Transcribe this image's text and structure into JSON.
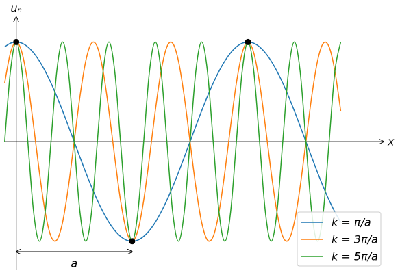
{
  "chart_data": {
    "type": "line",
    "xlabel": "x",
    "ylabel": "uₙ",
    "xlim": [
      -0.14,
      3.17
    ],
    "ylim": [
      -1.29,
      1.25
    ],
    "legend": "lower right",
    "x": [
      -0.1,
      -0.05,
      0,
      0.05,
      0.1,
      0.15,
      0.2,
      0.25,
      0.3,
      0.35,
      0.4,
      0.45,
      0.5,
      0.55,
      0.6,
      0.65,
      0.7,
      0.75,
      0.8,
      0.85,
      0.9,
      0.95,
      1,
      1.05,
      1.1,
      1.15,
      1.2,
      1.25,
      1.3,
      1.35,
      1.4,
      1.45,
      1.5,
      1.55,
      1.6,
      1.65,
      1.7,
      1.75,
      1.8,
      1.85,
      1.9,
      1.95,
      2,
      2.05,
      2.1,
      2.15,
      2.2,
      2.25,
      2.3,
      2.35,
      2.4,
      2.45,
      2.5,
      2.55,
      2.6,
      2.65,
      2.7,
      2.75,
      2.8
    ],
    "series": [
      {
        "name": "k = π/a",
        "color": "#1f77b4",
        "values": [
          0.951,
          0.988,
          1,
          0.988,
          0.951,
          0.891,
          0.809,
          0.707,
          0.588,
          0.454,
          0.309,
          0.156,
          0,
          -0.156,
          -0.309,
          -0.454,
          -0.588,
          -0.707,
          -0.809,
          -0.891,
          -0.951,
          -0.988,
          -1,
          -0.988,
          -0.951,
          -0.891,
          -0.809,
          -0.707,
          -0.588,
          -0.454,
          -0.309,
          -0.156,
          0,
          0.156,
          0.309,
          0.454,
          0.588,
          0.707,
          0.809,
          0.891,
          0.951,
          0.988,
          1,
          0.988,
          0.951,
          0.891,
          0.809,
          0.707,
          0.588,
          0.454,
          0.309,
          0.156,
          0,
          -0.156,
          -0.309,
          -0.454,
          -0.588,
          -0.707,
          -0.809
        ]
      },
      {
        "name": "k = 3π/a",
        "color": "#ff7f0e",
        "values": [
          0.588,
          0.891,
          1,
          0.891,
          0.588,
          0.156,
          -0.309,
          -0.707,
          -0.951,
          -0.988,
          -0.809,
          -0.454,
          0,
          0.454,
          0.809,
          0.988,
          0.951,
          0.707,
          0.309,
          -0.156,
          -0.588,
          -0.891,
          -1,
          -0.891,
          -0.588,
          -0.156,
          0.309,
          0.707,
          0.951,
          0.988,
          0.809,
          0.454,
          0,
          -0.454,
          -0.809,
          -0.988,
          -0.951,
          -0.707,
          -0.309,
          0.156,
          0.588,
          0.891,
          1,
          0.891,
          0.588,
          0.156,
          -0.309,
          -0.707,
          -0.951,
          -0.988,
          -0.809,
          -0.454,
          0,
          0.454,
          0.809,
          0.988,
          0.951,
          0.707,
          0.309
        ]
      },
      {
        "name": "k = 5π/a",
        "color": "#2ca02c",
        "values": [
          0,
          0.707,
          1,
          0.707,
          0,
          -0.707,
          -1,
          -0.707,
          0,
          0.707,
          1,
          0.707,
          0,
          -0.707,
          -1,
          -0.707,
          0,
          0.707,
          1,
          0.707,
          0,
          -0.707,
          -1,
          -0.707,
          0,
          0.707,
          1,
          0.707,
          0,
          -0.707,
          -1,
          -0.707,
          0,
          0.707,
          1,
          0.707,
          0,
          -0.707,
          -1,
          -0.707,
          0,
          0.707,
          1,
          0.707,
          0,
          -0.707,
          -1,
          -0.707,
          0,
          0.707,
          1,
          0.707,
          0,
          -0.707,
          -1,
          -0.707,
          0,
          0.707,
          1
        ]
      }
    ],
    "points": {
      "x": [
        0,
        1,
        2
      ],
      "y": [
        1,
        -1,
        1
      ],
      "color": "#000000"
    },
    "annotation": {
      "text": "a",
      "x": [
        0,
        1
      ]
    }
  }
}
